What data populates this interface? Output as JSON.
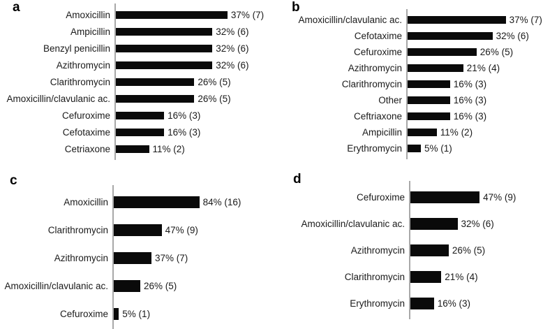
{
  "figure": {
    "background": "#ffffff",
    "bar_color": "#0a0a0a",
    "axis_color": "#a8a8a8",
    "text_color": "#1a1a1a",
    "value_label_format": "pct% (n)"
  },
  "chart_data": [
    {
      "panel": "a",
      "type": "bar",
      "orientation": "horizontal",
      "title": "",
      "xlabel": "",
      "ylabel": "",
      "grid": false,
      "legend": false,
      "x_axis_visible": false,
      "data_labels": true,
      "items": [
        {
          "category": "Amoxicillin",
          "pct": 37,
          "count": 7,
          "label": "37% (7)"
        },
        {
          "category": "Ampicillin",
          "pct": 32,
          "count": 6,
          "label": "32% (6)"
        },
        {
          "category": "Benzyl penicillin",
          "pct": 32,
          "count": 6,
          "label": "32% (6)"
        },
        {
          "category": "Azithromycin",
          "pct": 32,
          "count": 6,
          "label": "32% (6)"
        },
        {
          "category": "Clarithromycin",
          "pct": 26,
          "count": 5,
          "label": "26% (5)"
        },
        {
          "category": "Amoxicillin/clavulanic ac.",
          "pct": 26,
          "count": 5,
          "label": "26% (5)"
        },
        {
          "category": "Cefuroxime",
          "pct": 16,
          "count": 3,
          "label": "16% (3)"
        },
        {
          "category": "Cefotaxime",
          "pct": 16,
          "count": 3,
          "label": "16% (3)"
        },
        {
          "category": "Cetriaxone",
          "pct": 11,
          "count": 2,
          "label": "11% (2)"
        }
      ]
    },
    {
      "panel": "b",
      "type": "bar",
      "orientation": "horizontal",
      "title": "",
      "xlabel": "",
      "ylabel": "",
      "grid": false,
      "legend": false,
      "x_axis_visible": false,
      "data_labels": true,
      "items": [
        {
          "category": "Amoxicillin/clavulanic ac.",
          "pct": 37,
          "count": 7,
          "label": "37% (7)"
        },
        {
          "category": "Cefotaxime",
          "pct": 32,
          "count": 6,
          "label": "32% (6)"
        },
        {
          "category": "Cefuroxime",
          "pct": 26,
          "count": 5,
          "label": "26% (5)"
        },
        {
          "category": "Azithromycin",
          "pct": 21,
          "count": 4,
          "label": "21% (4)"
        },
        {
          "category": "Clarithromycin",
          "pct": 16,
          "count": 3,
          "label": "16% (3)"
        },
        {
          "category": "Other",
          "pct": 16,
          "count": 3,
          "label": "16% (3)"
        },
        {
          "category": "Ceftriaxone",
          "pct": 16,
          "count": 3,
          "label": "16% (3)"
        },
        {
          "category": "Ampicillin",
          "pct": 11,
          "count": 2,
          "label": "11% (2)"
        },
        {
          "category": "Erythromycin",
          "pct": 5,
          "count": 1,
          "label": "5% (1)"
        }
      ]
    },
    {
      "panel": "c",
      "type": "bar",
      "orientation": "horizontal",
      "title": "",
      "xlabel": "",
      "ylabel": "",
      "grid": false,
      "legend": false,
      "x_axis_visible": false,
      "data_labels": true,
      "items": [
        {
          "category": "Amoxicillin",
          "pct": 84,
          "count": 16,
          "label": "84% (16)"
        },
        {
          "category": "Clarithromycin",
          "pct": 47,
          "count": 9,
          "label": "47% (9)"
        },
        {
          "category": "Azithromycin",
          "pct": 37,
          "count": 7,
          "label": "37% (7)"
        },
        {
          "category": "Amoxicillin/clavulanic ac.",
          "pct": 26,
          "count": 5,
          "label": "26% (5)"
        },
        {
          "category": "Cefuroxime",
          "pct": 5,
          "count": 1,
          "label": "5% (1)"
        }
      ]
    },
    {
      "panel": "d",
      "type": "bar",
      "orientation": "horizontal",
      "title": "",
      "xlabel": "",
      "ylabel": "",
      "grid": false,
      "legend": false,
      "x_axis_visible": false,
      "data_labels": true,
      "items": [
        {
          "category": "Cefuroxime",
          "pct": 47,
          "count": 9,
          "label": "47% (9)"
        },
        {
          "category": "Amoxicillin/clavulanic ac.",
          "pct": 32,
          "count": 6,
          "label": "32% (6)"
        },
        {
          "category": "Azithromycin",
          "pct": 26,
          "count": 5,
          "label": "26% (5)"
        },
        {
          "category": "Clarithromycin",
          "pct": 21,
          "count": 4,
          "label": "21% (4)"
        },
        {
          "category": "Erythromycin",
          "pct": 16,
          "count": 3,
          "label": "16% (3)"
        }
      ]
    }
  ]
}
